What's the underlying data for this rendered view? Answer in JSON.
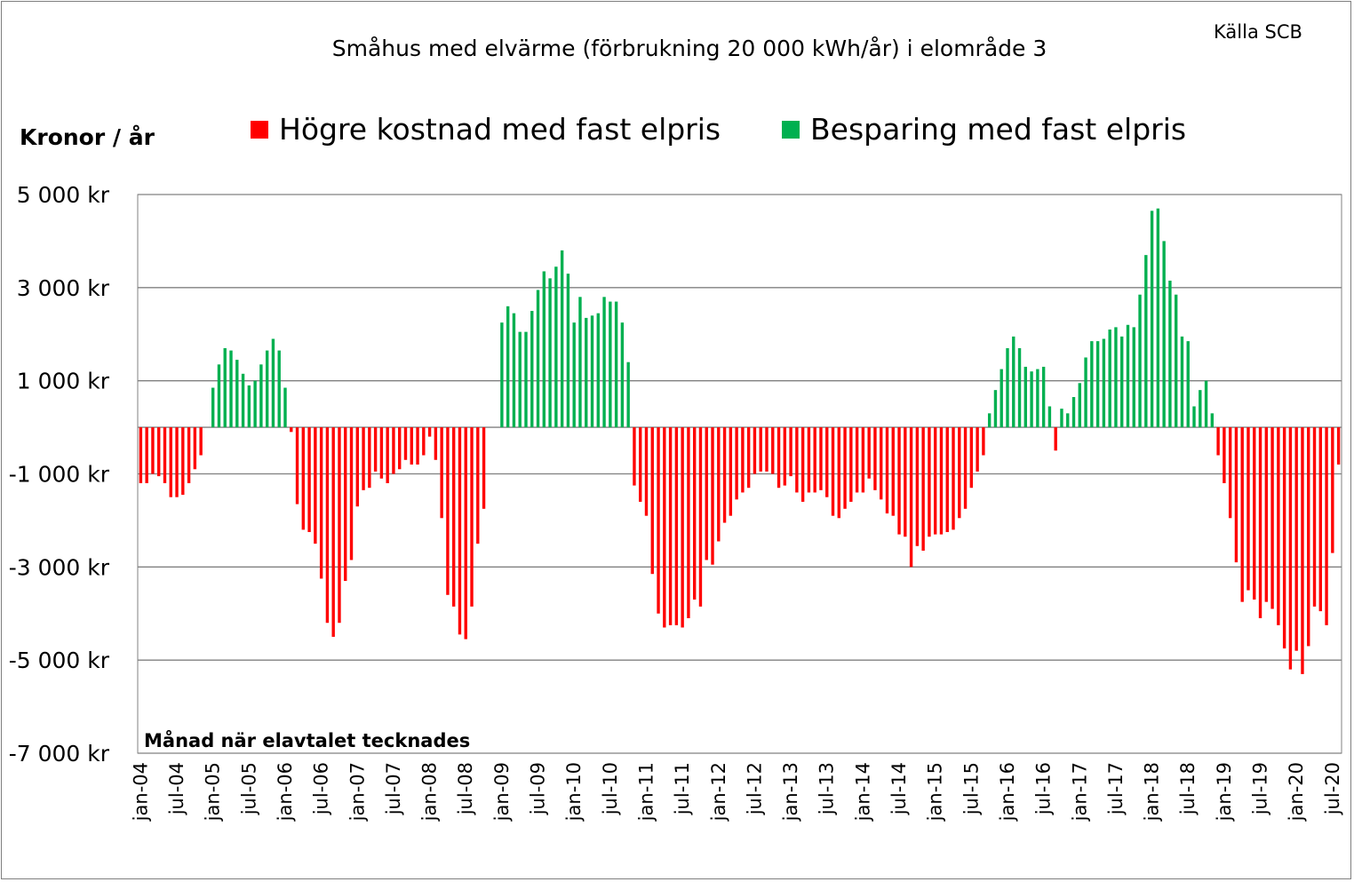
{
  "chart_data": {
    "type": "bar",
    "title": "Småhus med elvärme (förbrukning 20 000 kWh/år) i  elområde 3",
    "source": "Källa SCB",
    "ylabel": "Kronor / år",
    "xlabel": "Månad när elavtalet tecknades",
    "ylim": [
      -7000,
      5000
    ],
    "yticks": [
      5000,
      3000,
      1000,
      -1000,
      -3000,
      -5000,
      -7000
    ],
    "ytick_labels": [
      "5 000 kr",
      "3 000 kr",
      "1 000 kr",
      "-1 000 kr",
      "-3 000 kr",
      "-5 000 kr",
      "-7 000 kr"
    ],
    "x_start": "2004-01",
    "x_tick_labels": [
      "jan-04",
      "jul-04",
      "jan-05",
      "jul-05",
      "jan-06",
      "jul-06",
      "jan-07",
      "jul-07",
      "jan-08",
      "jul-08",
      "jan-09",
      "jul-09",
      "jan-10",
      "jul-10",
      "jan-11",
      "jul-11",
      "jan-12",
      "jul-12",
      "jan-13",
      "jul-13",
      "jan-14",
      "jul-14",
      "jan-15",
      "jul-15",
      "jan-16",
      "jul-16",
      "jan-17",
      "jul-17",
      "jan-18",
      "jul-18",
      "jan-19",
      "jul-19",
      "jan-20",
      "jul-20"
    ],
    "legend": [
      {
        "label": "Högre kostnad med fast elpris",
        "color": "#ff0000"
      },
      {
        "label": "Besparing med fast elpris",
        "color": "#00b050"
      }
    ],
    "colors": {
      "positive": "#00b050",
      "negative": "#ff0000",
      "grid": "#808080"
    },
    "values": [
      -1200,
      -1200,
      -1000,
      -1050,
      -1200,
      -1500,
      -1500,
      -1450,
      -1200,
      -900,
      -600,
      0,
      850,
      1350,
      1700,
      1650,
      1450,
      1150,
      900,
      1000,
      1350,
      1650,
      1900,
      1650,
      850,
      -100,
      -1650,
      -2200,
      -2250,
      -2500,
      -3250,
      -4200,
      -4500,
      -4200,
      -3300,
      -2850,
      -1700,
      -1350,
      -1300,
      -950,
      -1100,
      -1200,
      -1000,
      -900,
      -700,
      -800,
      -800,
      -600,
      -200,
      -700,
      -1950,
      -3600,
      -3850,
      -4450,
      -4550,
      -3850,
      -2500,
      -1750,
      0,
      0,
      2250,
      2600,
      2450,
      2050,
      2050,
      2500,
      2950,
      3350,
      3200,
      3450,
      3800,
      3300,
      2250,
      2800,
      2350,
      2400,
      2450,
      2800,
      2700,
      2700,
      2250,
      1400,
      -1250,
      -1600,
      -1900,
      -3150,
      -4000,
      -4300,
      -4250,
      -4250,
      -4300,
      -4100,
      -3700,
      -3850,
      -2850,
      -2950,
      -2450,
      -2050,
      -1900,
      -1550,
      -1400,
      -1300,
      -1000,
      -950,
      -950,
      -1000,
      -1300,
      -1250,
      -1050,
      -1400,
      -1600,
      -1400,
      -1400,
      -1350,
      -1500,
      -1900,
      -1950,
      -1750,
      -1600,
      -1400,
      -1400,
      -1100,
      -1350,
      -1550,
      -1850,
      -1900,
      -2300,
      -2350,
      -3000,
      -2550,
      -2650,
      -2350,
      -2300,
      -2300,
      -2250,
      -2200,
      -1950,
      -1750,
      -1300,
      -950,
      -600,
      300,
      800,
      1250,
      1700,
      1950,
      1700,
      1300,
      1200,
      1250,
      1300,
      450,
      -500,
      400,
      300,
      650,
      950,
      1500,
      1850,
      1850,
      1900,
      2100,
      2150,
      1950,
      2200,
      2150,
      2850,
      3700,
      4650,
      4700,
      4000,
      3150,
      2850,
      1950,
      1850,
      450,
      800,
      1000,
      300,
      -600,
      -1200,
      -1950,
      -2900,
      -3750,
      -3500,
      -3700,
      -4100,
      -3750,
      -3900,
      -4250,
      -4750,
      -5200,
      -4800,
      -5300,
      -4700,
      -3850,
      -3950,
      -4250,
      -2700,
      -800
    ]
  }
}
